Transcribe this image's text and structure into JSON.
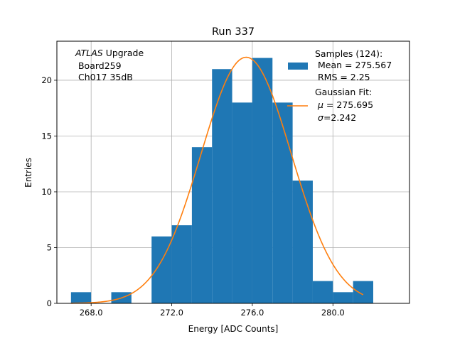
{
  "chart_data": {
    "type": "bar",
    "title": "Run 337",
    "xlabel": "Energy [ADC Counts]",
    "ylabel": "Entries",
    "xlim": [
      266.3,
      283.8
    ],
    "ylim": [
      0,
      23.5
    ],
    "xticks": [
      268.0,
      272.0,
      276.0,
      280.0
    ],
    "xtick_labels": [
      "268.0",
      "272.0",
      "276.0",
      "280.0"
    ],
    "yticks": [
      0,
      5,
      10,
      15,
      20
    ],
    "ytick_labels": [
      "0",
      "5",
      "10",
      "15",
      "20"
    ],
    "grid": true,
    "histogram": {
      "name": "Samples (124):",
      "color": "#1f77b4",
      "bin_edges": [
        267,
        268,
        269,
        270,
        271,
        272,
        273,
        274,
        275,
        276,
        277,
        278,
        279,
        280,
        281,
        282
      ],
      "counts": [
        1,
        0,
        1,
        0,
        6,
        7,
        14,
        21,
        18,
        22,
        18,
        11,
        2,
        1,
        2
      ]
    },
    "fit": {
      "name": "Gaussian Fit:",
      "color": "#ff7f0e",
      "type": "gaussian",
      "mu": 275.695,
      "sigma": 2.242,
      "amplitude": 22.06,
      "x_range": [
        267.0,
        281.5
      ]
    },
    "annotation": {
      "italic": "ATLAS",
      "line1_rest": " Upgrade",
      "line2": " Board259",
      "line3": " Ch017 35dB"
    },
    "legend": {
      "position": "upper right",
      "hist_lines": [
        "Samples (124):",
        " Mean = 275.567",
        " RMS = 2.25"
      ],
      "fit_line1": "Gaussian Fit:",
      "fit_mu_symbol": "μ",
      "fit_mu_value": " = 275.695",
      "fit_sigma_symbol": "σ",
      "fit_sigma_value": "=2.242"
    }
  }
}
